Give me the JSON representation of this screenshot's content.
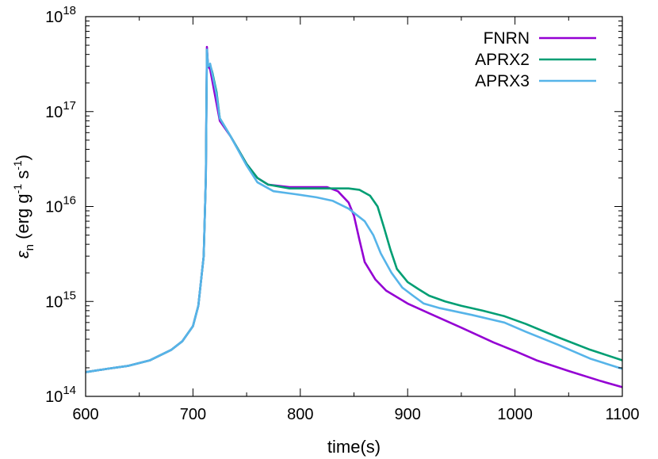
{
  "chart_data": {
    "type": "line",
    "xlabel": "time(s)",
    "ylabel": {
      "symbol": "ε",
      "subscript": "n",
      "unit_open": " (erg g",
      "exp1": "-1",
      "unit_mid": " s",
      "exp2": "-1",
      "unit_close": ")"
    },
    "xlim": [
      600,
      1100
    ],
    "ylim": [
      100000000000000.0,
      1e+18
    ],
    "yscale": "log",
    "xticks": [
      {
        "value": 600,
        "label": "600"
      },
      {
        "value": 700,
        "label": "700"
      },
      {
        "value": 800,
        "label": "800"
      },
      {
        "value": 900,
        "label": "900"
      },
      {
        "value": 1000,
        "label": "1000"
      },
      {
        "value": 1100,
        "label": "1100"
      }
    ],
    "yticks": [
      {
        "value": 100000000000000.0,
        "base": "10",
        "exp": "14"
      },
      {
        "value": 1000000000000000.0,
        "base": "10",
        "exp": "15"
      },
      {
        "value": 1e+16,
        "base": "10",
        "exp": "16"
      },
      {
        "value": 1e+17,
        "base": "10",
        "exp": "17"
      },
      {
        "value": 1e+18,
        "base": "10",
        "exp": "18"
      }
    ],
    "legend_position": "top-right",
    "grid": false,
    "series": [
      {
        "name": "FNRN",
        "color": "#9400d3",
        "points": [
          [
            600,
            180000000000000.0
          ],
          [
            620,
            195000000000000.0
          ],
          [
            640,
            210000000000000.0
          ],
          [
            660,
            240000000000000.0
          ],
          [
            680,
            310000000000000.0
          ],
          [
            690,
            380000000000000.0
          ],
          [
            700,
            550000000000000.0
          ],
          [
            705,
            900000000000000.0
          ],
          [
            710,
            3000000000000000.0
          ],
          [
            712,
            2e+16
          ],
          [
            713,
            4.8e+17
          ],
          [
            714,
            3e+17
          ],
          [
            716,
            2.8e+17
          ],
          [
            720,
            1.6e+17
          ],
          [
            725,
            8e+16
          ],
          [
            735,
            5.5e+16
          ],
          [
            750,
            2.8e+16
          ],
          [
            760,
            2e+16
          ],
          [
            770,
            1.7e+16
          ],
          [
            790,
            1.6e+16
          ],
          [
            810,
            1.6e+16
          ],
          [
            825,
            1.6e+16
          ],
          [
            835,
            1.45e+16
          ],
          [
            845,
            1.1e+16
          ],
          [
            850,
            8000000000000000.0
          ],
          [
            855,
            4500000000000000.0
          ],
          [
            860,
            2600000000000000.0
          ],
          [
            870,
            1700000000000000.0
          ],
          [
            880,
            1300000000000000.0
          ],
          [
            900,
            950000000000000.0
          ],
          [
            920,
            750000000000000.0
          ],
          [
            950,
            530000000000000.0
          ],
          [
            980,
            370000000000000.0
          ],
          [
            1000,
            300000000000000.0
          ],
          [
            1020,
            240000000000000.0
          ],
          [
            1050,
            185000000000000.0
          ],
          [
            1080,
            145000000000000.0
          ],
          [
            1100,
            125000000000000.0
          ]
        ]
      },
      {
        "name": "APRX2",
        "color": "#009e73",
        "points": [
          [
            600,
            180000000000000.0
          ],
          [
            620,
            195000000000000.0
          ],
          [
            640,
            210000000000000.0
          ],
          [
            660,
            240000000000000.0
          ],
          [
            680,
            310000000000000.0
          ],
          [
            690,
            380000000000000.0
          ],
          [
            700,
            550000000000000.0
          ],
          [
            705,
            900000000000000.0
          ],
          [
            710,
            3000000000000000.0
          ],
          [
            712,
            2e+16
          ],
          [
            713,
            4.5e+17
          ],
          [
            714,
            3e+17
          ],
          [
            716,
            3.1e+17
          ],
          [
            718,
            2.6e+17
          ],
          [
            722,
            1.6e+17
          ],
          [
            725,
            8.5e+16
          ],
          [
            735,
            5.5e+16
          ],
          [
            750,
            2.8e+16
          ],
          [
            760,
            2e+16
          ],
          [
            770,
            1.7e+16
          ],
          [
            790,
            1.55e+16
          ],
          [
            810,
            1.55e+16
          ],
          [
            830,
            1.55e+16
          ],
          [
            845,
            1.55e+16
          ],
          [
            855,
            1.5e+16
          ],
          [
            865,
            1.3e+16
          ],
          [
            872,
            1e+16
          ],
          [
            878,
            6000000000000000.0
          ],
          [
            884,
            3500000000000000.0
          ],
          [
            890,
            2200000000000000.0
          ],
          [
            900,
            1600000000000000.0
          ],
          [
            910,
            1350000000000000.0
          ],
          [
            920,
            1150000000000000.0
          ],
          [
            935,
            1000000000000000.0
          ],
          [
            950,
            900000000000000.0
          ],
          [
            970,
            800000000000000.0
          ],
          [
            990,
            700000000000000.0
          ],
          [
            1010,
            580000000000000.0
          ],
          [
            1040,
            420000000000000.0
          ],
          [
            1070,
            310000000000000.0
          ],
          [
            1100,
            240000000000000.0
          ]
        ]
      },
      {
        "name": "APRX3",
        "color": "#56b4e9",
        "points": [
          [
            600,
            180000000000000.0
          ],
          [
            620,
            195000000000000.0
          ],
          [
            640,
            210000000000000.0
          ],
          [
            660,
            240000000000000.0
          ],
          [
            680,
            310000000000000.0
          ],
          [
            690,
            380000000000000.0
          ],
          [
            700,
            550000000000000.0
          ],
          [
            705,
            900000000000000.0
          ],
          [
            710,
            3000000000000000.0
          ],
          [
            712,
            2e+16
          ],
          [
            713,
            4.5e+17
          ],
          [
            714,
            3e+17
          ],
          [
            716,
            3.2e+17
          ],
          [
            718,
            2.5e+17
          ],
          [
            722,
            1.5e+17
          ],
          [
            725,
            8.5e+16
          ],
          [
            735,
            5.5e+16
          ],
          [
            750,
            2.7e+16
          ],
          [
            760,
            1.8e+16
          ],
          [
            775,
            1.45e+16
          ],
          [
            795,
            1.35e+16
          ],
          [
            815,
            1.25e+16
          ],
          [
            830,
            1.15e+16
          ],
          [
            845,
            9500000000000000.0
          ],
          [
            860,
            7000000000000000.0
          ],
          [
            868,
            5000000000000000.0
          ],
          [
            875,
            3200000000000000.0
          ],
          [
            885,
            2000000000000000.0
          ],
          [
            895,
            1400000000000000.0
          ],
          [
            905,
            1150000000000000.0
          ],
          [
            915,
            950000000000000.0
          ],
          [
            930,
            850000000000000.0
          ],
          [
            960,
            720000000000000.0
          ],
          [
            990,
            600000000000000.0
          ],
          [
            1010,
            480000000000000.0
          ],
          [
            1040,
            350000000000000.0
          ],
          [
            1070,
            250000000000000.0
          ],
          [
            1100,
            195000000000000.0
          ]
        ]
      }
    ]
  }
}
